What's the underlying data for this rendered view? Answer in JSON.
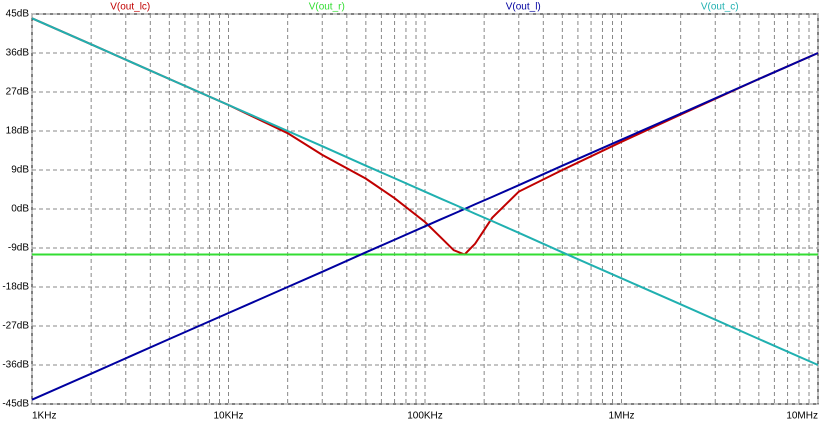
{
  "chart_data": {
    "type": "line",
    "x": [
      1000,
      2000,
      5000,
      10000,
      20000,
      30000,
      50000,
      70000,
      100000,
      120000,
      140000,
      159000,
      180000,
      220000,
      300000,
      500000,
      1000000,
      2000000,
      5000000,
      10000000
    ],
    "series": [
      {
        "name": "V(out_lc)",
        "color": "#c00000",
        "values": [
          44,
          38,
          30,
          24,
          17.5,
          12.5,
          7,
          2.5,
          -3,
          -6.5,
          -9.5,
          -10.5,
          -8,
          -2,
          4,
          9,
          15.5,
          21.8,
          30,
          36
        ]
      },
      {
        "name": "V(out_r)",
        "color": "#33dd33",
        "values": [
          -10.5,
          -10.5,
          -10.5,
          -10.5,
          -10.5,
          -10.5,
          -10.5,
          -10.5,
          -10.5,
          -10.5,
          -10.5,
          -10.5,
          -10.5,
          -10.5,
          -10.5,
          -10.5,
          -10.5,
          -10.5,
          -10.5,
          -10.5
        ]
      },
      {
        "name": "V(out_l)",
        "color": "#0000a0",
        "values": [
          -44,
          -38,
          -30,
          -24,
          -18,
          -14.5,
          -10,
          -7.1,
          -4,
          -2.4,
          -1.1,
          0,
          1.1,
          2.8,
          5.5,
          10,
          16,
          22,
          30,
          36
        ]
      },
      {
        "name": "V(out_c)",
        "color": "#20b0b0",
        "values": [
          44,
          38,
          30,
          24,
          18,
          14.5,
          10,
          7.1,
          4,
          2.4,
          1.1,
          0,
          -1.1,
          -2.8,
          -5.5,
          -10,
          -16,
          -22,
          -30,
          -36
        ]
      }
    ],
    "xlim": [
      1000,
      10000000
    ],
    "xscale": "log",
    "xticks": [
      {
        "value": 1000,
        "label": "1KHz"
      },
      {
        "value": 10000,
        "label": "10KHz"
      },
      {
        "value": 100000,
        "label": "100KHz"
      },
      {
        "value": 1000000,
        "label": "1MHz"
      },
      {
        "value": 10000000,
        "label": "10MHz"
      }
    ],
    "ylim": [
      -45,
      45
    ],
    "yticks": [
      {
        "value": -45,
        "label": "-45dB"
      },
      {
        "value": -36,
        "label": "-36dB"
      },
      {
        "value": -27,
        "label": "-27dB"
      },
      {
        "value": -18,
        "label": "-18dB"
      },
      {
        "value": -9,
        "label": "-9dB"
      },
      {
        "value": 0,
        "label": "0dB"
      },
      {
        "value": 9,
        "label": "9dB"
      },
      {
        "value": 18,
        "label": "18dB"
      },
      {
        "value": 27,
        "label": "27dB"
      },
      {
        "value": 36,
        "label": "36dB"
      },
      {
        "value": 45,
        "label": "45dB"
      }
    ],
    "grid": true
  }
}
